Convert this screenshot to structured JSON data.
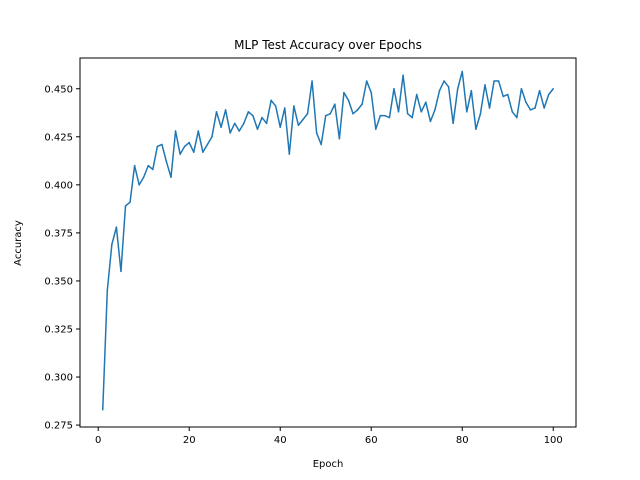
{
  "chart_data": {
    "type": "line",
    "title": "MLP Test Accuracy over Epochs",
    "xlabel": "Epoch",
    "ylabel": "Accuracy",
    "xlim": [
      -4,
      105
    ],
    "ylim": [
      0.274,
      0.466
    ],
    "grid": false,
    "legend": "none",
    "xticks": [
      0,
      20,
      40,
      60,
      80,
      100
    ],
    "yticks": [
      0.275,
      0.3,
      0.325,
      0.35,
      0.375,
      0.4,
      0.425,
      0.45
    ],
    "xtick_labels": [
      "0",
      "20",
      "40",
      "60",
      "80",
      "100"
    ],
    "ytick_labels": [
      "0.275",
      "0.300",
      "0.325",
      "0.350",
      "0.375",
      "0.400",
      "0.425",
      "0.450"
    ],
    "line_color": "#1f77b4",
    "series": [
      {
        "x": [
          1,
          2,
          3,
          4,
          5,
          6,
          7,
          8,
          9,
          10,
          11,
          12,
          13,
          14,
          15,
          16,
          17,
          18,
          19,
          20,
          21,
          22,
          23,
          24,
          25,
          26,
          27,
          28,
          29,
          30,
          31,
          32,
          33,
          34,
          35,
          36,
          37,
          38,
          39,
          40,
          41,
          42,
          43,
          44,
          45,
          46,
          47,
          48,
          49,
          50,
          51,
          52,
          53,
          54,
          55,
          56,
          57,
          58,
          59,
          60,
          61,
          62,
          63,
          64,
          65,
          66,
          67,
          68,
          69,
          70,
          71,
          72,
          73,
          74,
          75,
          76,
          77,
          78,
          79,
          80,
          81,
          82,
          83,
          84,
          85,
          86,
          87,
          88,
          89,
          90,
          91,
          92,
          93,
          94,
          95,
          96,
          97,
          98,
          99,
          100
        ],
        "values": [
          0.283,
          0.345,
          0.369,
          0.378,
          0.355,
          0.389,
          0.391,
          0.41,
          0.4,
          0.404,
          0.41,
          0.408,
          0.42,
          0.421,
          0.412,
          0.404,
          0.428,
          0.416,
          0.42,
          0.422,
          0.417,
          0.428,
          0.417,
          0.421,
          0.425,
          0.438,
          0.43,
          0.439,
          0.427,
          0.432,
          0.428,
          0.432,
          0.438,
          0.436,
          0.429,
          0.435,
          0.432,
          0.444,
          0.441,
          0.43,
          0.44,
          0.416,
          0.441,
          0.431,
          0.434,
          0.437,
          0.454,
          0.427,
          0.421,
          0.436,
          0.437,
          0.442,
          0.424,
          0.448,
          0.444,
          0.437,
          0.439,
          0.442,
          0.454,
          0.448,
          0.429,
          0.436,
          0.436,
          0.435,
          0.45,
          0.438,
          0.457,
          0.437,
          0.435,
          0.447,
          0.438,
          0.443,
          0.433,
          0.439,
          0.449,
          0.454,
          0.451,
          0.432,
          0.45,
          0.459,
          0.438,
          0.449,
          0.429,
          0.437,
          0.452,
          0.44,
          0.454,
          0.454,
          0.446,
          0.447,
          0.438,
          0.435,
          0.45,
          0.443,
          0.439,
          0.44,
          0.449,
          0.44,
          0.447,
          0.45
        ]
      }
    ]
  }
}
